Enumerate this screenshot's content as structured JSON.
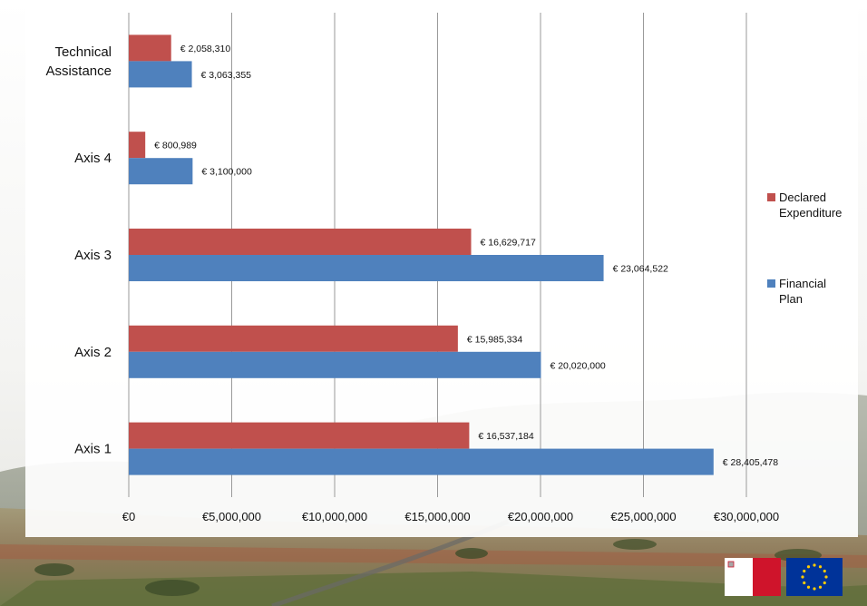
{
  "chart_data": {
    "type": "bar",
    "orientation": "horizontal",
    "categories": [
      "Technical Assistance",
      "Axis 4",
      "Axis 3",
      "Axis 2",
      "Axis 1"
    ],
    "category_label_lines": [
      [
        "Technical",
        "Assistance"
      ],
      [
        "Axis 4"
      ],
      [
        "Axis 3"
      ],
      [
        "Axis 2"
      ],
      [
        "Axis 1"
      ]
    ],
    "series": [
      {
        "name": "Declared Expenditure",
        "name_lines": [
          "Declared",
          "Expenditure"
        ],
        "color": "#c0504d",
        "values": [
          2058310,
          800989,
          16629717,
          15985334,
          16537184
        ],
        "labels": [
          "€ 2,058,310",
          "€ 800,989",
          "€ 16,629,717",
          "€ 15,985,334",
          "€ 16,537,184"
        ]
      },
      {
        "name": "Financial Plan",
        "name_lines": [
          "Financial",
          "Plan"
        ],
        "color": "#4f81bd",
        "values": [
          3063355,
          3100000,
          23064522,
          20020000,
          28405478
        ],
        "labels": [
          "€ 3,063,355",
          "€ 3,100,000",
          "€ 23,064,522",
          "€ 20,020,000",
          "€ 28,405,478"
        ]
      }
    ],
    "xlim": [
      0,
      30000000
    ],
    "x_ticks": [
      0,
      5000000,
      10000000,
      15000000,
      20000000,
      25000000,
      30000000
    ],
    "x_tick_labels": [
      "€0",
      "€5,000,000",
      "€10,000,000",
      "€15,000,000",
      "€20,000,000",
      "€25,000,000",
      "€30,000,000"
    ],
    "grid": "vertical",
    "legend_position": "right"
  },
  "colors": {
    "gridline": "#9a9a9a",
    "panel": "#ffffff"
  },
  "flags": [
    {
      "icon": "malta-flag-icon",
      "colors": [
        "#ffffff",
        "#cf142b"
      ]
    },
    {
      "icon": "eu-flag-icon",
      "colors": [
        "#003399",
        "#ffcc00"
      ]
    }
  ]
}
